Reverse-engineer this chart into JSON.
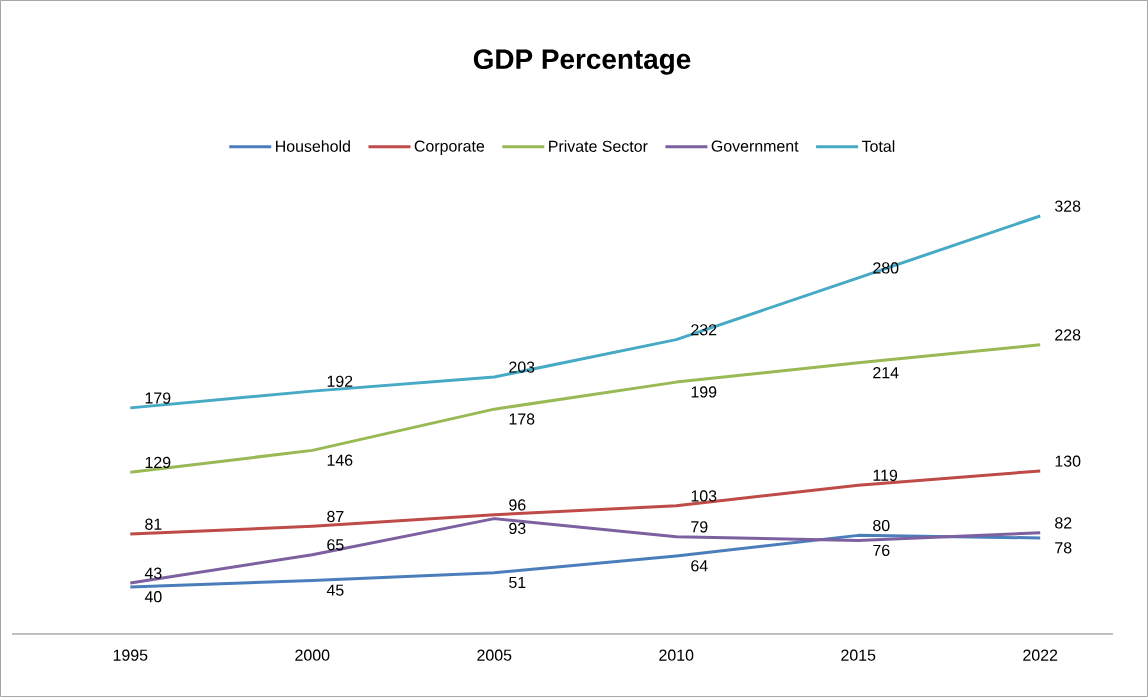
{
  "chart_data": {
    "type": "line",
    "title": "GDP Percentage",
    "categories": [
      "1995",
      "2000",
      "2005",
      "2010",
      "2015",
      "2022"
    ],
    "series": [
      {
        "name": "Household",
        "color": "#4a7ebb",
        "values": [
          40,
          45,
          51,
          64,
          80,
          78
        ]
      },
      {
        "name": "Corporate",
        "color": "#be4b48",
        "values": [
          81,
          87,
          96,
          103,
          119,
          130
        ]
      },
      {
        "name": "Private Sector",
        "color": "#98b954",
        "values": [
          129,
          146,
          178,
          199,
          214,
          228
        ]
      },
      {
        "name": "Government",
        "color": "#7d60a0",
        "values": [
          43,
          65,
          93,
          79,
          76,
          82
        ]
      },
      {
        "name": "Total",
        "color": "#46aac5",
        "values": [
          179,
          192,
          203,
          232,
          280,
          328
        ]
      }
    ],
    "data_labels": true,
    "legend": "top",
    "marker": "none",
    "line_style": "solid"
  }
}
